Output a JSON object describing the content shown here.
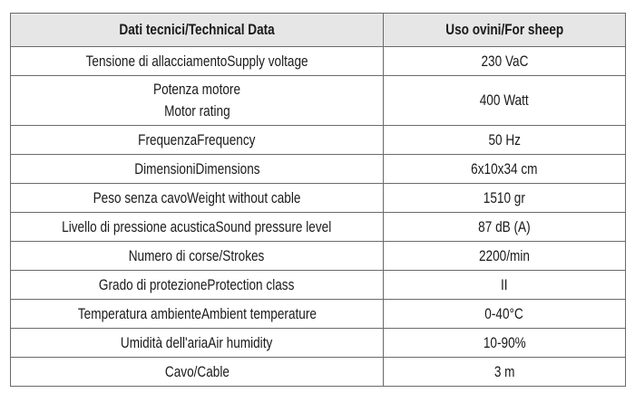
{
  "table": {
    "headers": [
      "Dati tecnici/Technical Data",
      "Uso ovini/For sheep"
    ],
    "rows": [
      {
        "label": "Tensione di allacciamentoSupply voltage",
        "value": "230 VaC"
      },
      {
        "label": "Potenza motore",
        "label2": "Motor rating",
        "value": "400 Watt"
      },
      {
        "label": "FrequenzaFrequency",
        "value": "50 Hz"
      },
      {
        "label": "DimensioniDimensions",
        "value": "6x10x34 cm"
      },
      {
        "label": "Peso senza cavoWeight without cable",
        "value": "1510 gr"
      },
      {
        "label": "Livello di pressione acusticaSound pressure level",
        "value": "87 dB (A)"
      },
      {
        "label": "Numero di corse/Strokes",
        "value": "2200/min"
      },
      {
        "label": "Grado di protezioneProtection class",
        "value": "II"
      },
      {
        "label": "Temperatura ambienteAmbient temperature",
        "value": "0-40°C"
      },
      {
        "label": "Umidità dell'ariaAir humidity",
        "value": "10-90%"
      },
      {
        "label": "Cavo/Cable",
        "value": "3 m"
      }
    ]
  }
}
